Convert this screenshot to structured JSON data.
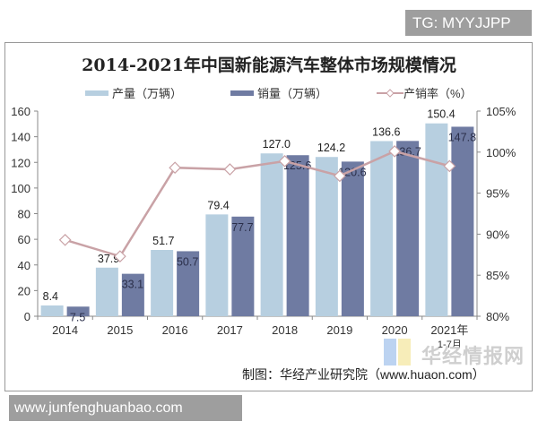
{
  "overlay": {
    "tg_label": "TG: MYYJJPP",
    "website": "www.junfenghuanbao.com",
    "watermark_logo": "华经情报网"
  },
  "chart": {
    "title": "2014-2021年中国新能源汽车整体市场规模情况",
    "source": "制图：华经产业研究院（www.huaon.com）"
  },
  "legend": [
    {
      "label": "产量（万辆）",
      "color": "#b7cfe0"
    },
    {
      "label": "销量（万辆）",
      "color": "#6f7ba2"
    },
    {
      "label": "产销率（%）",
      "color": "#c9a2a6"
    }
  ],
  "chart_data": {
    "type": "bar",
    "title": "2014-2021年中国新能源汽车整体市场规模情况",
    "categories": [
      "2014",
      "2015",
      "2016",
      "2017",
      "2018",
      "2019",
      "2020",
      "2021年1-7月"
    ],
    "series": [
      {
        "name": "产量（万辆）",
        "type": "bar",
        "axis": "left",
        "color": "#b7cfe0",
        "values": [
          8.4,
          37.9,
          51.7,
          79.4,
          127.0,
          124.2,
          136.6,
          150.4
        ]
      },
      {
        "name": "销量（万辆）",
        "type": "bar",
        "axis": "left",
        "color": "#6f7ba2",
        "values": [
          7.5,
          33.1,
          50.7,
          77.7,
          125.6,
          120.6,
          136.7,
          147.8
        ]
      },
      {
        "name": "产销率（%）",
        "type": "line",
        "axis": "right",
        "color": "#c9a2a6",
        "values": [
          89.3,
          87.3,
          98.1,
          97.9,
          98.9,
          97.1,
          100.1,
          98.3
        ]
      }
    ],
    "left_axis": {
      "min": 0,
      "max": 160,
      "ticks": [
        0,
        20,
        40,
        60,
        80,
        100,
        120,
        140,
        160
      ]
    },
    "right_axis": {
      "min": 80,
      "max": 105,
      "ticks": [
        "80%",
        "85%",
        "90%",
        "95%",
        "100%",
        "105%"
      ]
    },
    "xlabel": "",
    "ylabel": "",
    "grid": false,
    "legend_position": "top",
    "source": "制图：华经产业研究院（www.huaon.com）"
  }
}
